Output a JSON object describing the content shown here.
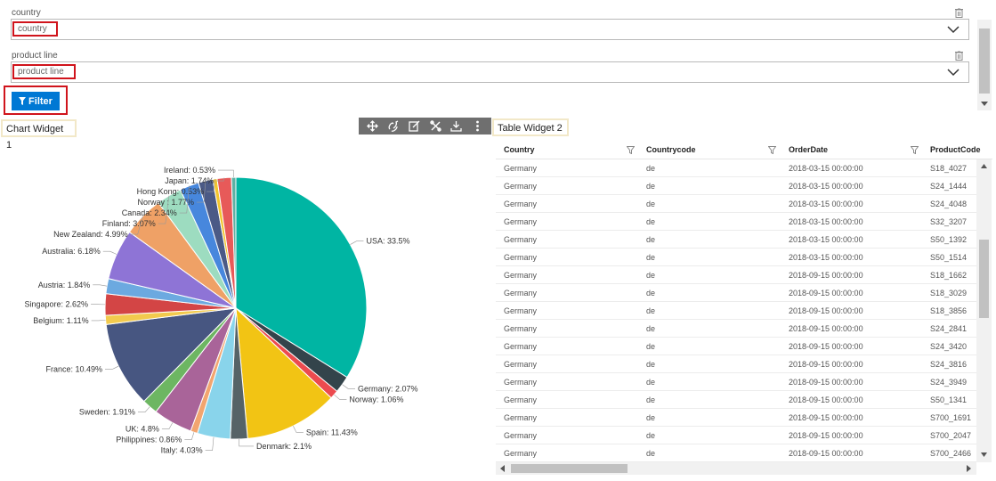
{
  "filters": {
    "country": {
      "label": "country",
      "placeholder": "country"
    },
    "product_line": {
      "label": "product line",
      "placeholder": "product line"
    },
    "button_label": "Filter"
  },
  "widgets": {
    "chart_title": "Chart Widget 1",
    "table_title": "Table Widget 2"
  },
  "icons": {
    "toolbar": [
      "move-icon",
      "link-icon",
      "edit-icon",
      "settings-icon",
      "download-icon",
      "more-vertical-icon"
    ]
  },
  "chart_data": {
    "type": "pie",
    "labels": [
      "USA",
      "Germany",
      "Norway",
      "Spain",
      "Denmark",
      "Italy",
      "Philippines",
      "UK",
      "Sweden",
      "France",
      "Belgium",
      "Singapore",
      "Austria",
      "Australia",
      "New Zealand",
      "Finland",
      "Canada",
      "Norway ",
      "Hong Kong",
      "Japan",
      "Ireland"
    ],
    "values": [
      33.5,
      2.07,
      1.06,
      11.43,
      2.1,
      4.03,
      0.86,
      4.8,
      1.91,
      10.49,
      1.11,
      2.62,
      1.84,
      6.18,
      4.99,
      3.07,
      2.34,
      1.77,
      0.53,
      1.74,
      0.53
    ],
    "display": [
      "USA: 33.5%",
      "Germany: 2.07%",
      "Norway: 1.06%",
      "Spain: 11.43%",
      "Denmark: 2.1%",
      "Italy: 4.03%",
      "Philippines: 0.86%",
      "UK: 4.8%",
      "Sweden: 1.91%",
      "France: 10.49%",
      "Belgium: 1.11%",
      "Singapore: 2.62%",
      "Austria: 1.84%",
      "Australia: 6.18%",
      "New Zealand: 4.99%",
      "Finland: 3.07%",
      "Canada: 2.34%",
      "Norway : 1.77%",
      "Hong Kong: 0.53%",
      "Japan: 1.74%",
      "Ireland: 0.53%"
    ],
    "colors": [
      "#00b5a3",
      "#33444b",
      "#ec4b4f",
      "#f2c414",
      "#566367",
      "#89d4eb",
      "#f2a56f",
      "#a96499",
      "#6db662",
      "#475681",
      "#f2ca4e",
      "#d34545",
      "#6ca9e0",
      "#8e74d6",
      "#efa166",
      "#9ddcc0",
      "#4787dd",
      "#4b5a86",
      "#f2c52d",
      "#e75a59",
      "#5eb1a4"
    ]
  },
  "table": {
    "columns": [
      "Country",
      "Countrycode",
      "OrderDate",
      "ProductCode"
    ],
    "rows": [
      [
        "Germany",
        "de",
        "2018-03-15 00:00:00",
        "S18_4027"
      ],
      [
        "Germany",
        "de",
        "2018-03-15 00:00:00",
        "S24_1444"
      ],
      [
        "Germany",
        "de",
        "2018-03-15 00:00:00",
        "S24_4048"
      ],
      [
        "Germany",
        "de",
        "2018-03-15 00:00:00",
        "S32_3207"
      ],
      [
        "Germany",
        "de",
        "2018-03-15 00:00:00",
        "S50_1392"
      ],
      [
        "Germany",
        "de",
        "2018-03-15 00:00:00",
        "S50_1514"
      ],
      [
        "Germany",
        "de",
        "2018-09-15 00:00:00",
        "S18_1662"
      ],
      [
        "Germany",
        "de",
        "2018-09-15 00:00:00",
        "S18_3029"
      ],
      [
        "Germany",
        "de",
        "2018-09-15 00:00:00",
        "S18_3856"
      ],
      [
        "Germany",
        "de",
        "2018-09-15 00:00:00",
        "S24_2841"
      ],
      [
        "Germany",
        "de",
        "2018-09-15 00:00:00",
        "S24_3420"
      ],
      [
        "Germany",
        "de",
        "2018-09-15 00:00:00",
        "S24_3816"
      ],
      [
        "Germany",
        "de",
        "2018-09-15 00:00:00",
        "S24_3949"
      ],
      [
        "Germany",
        "de",
        "2018-09-15 00:00:00",
        "S50_1341"
      ],
      [
        "Germany",
        "de",
        "2018-09-15 00:00:00",
        "S700_1691"
      ],
      [
        "Germany",
        "de",
        "2018-09-15 00:00:00",
        "S700_2047"
      ],
      [
        "Germany",
        "de",
        "2018-09-15 00:00:00",
        "S700_2466"
      ]
    ]
  }
}
